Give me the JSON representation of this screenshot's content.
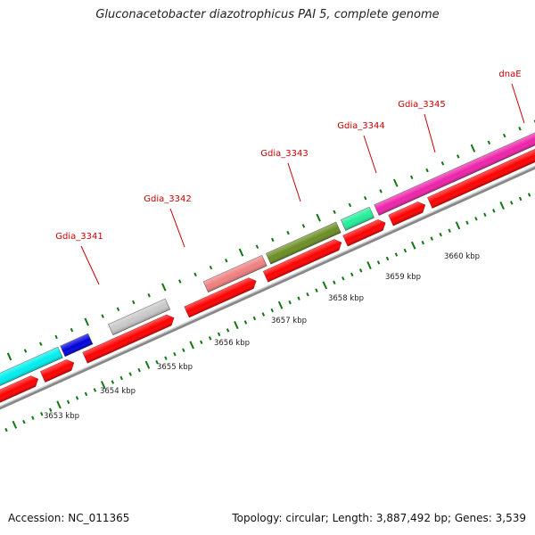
{
  "title": "Gluconacetobacter diazotrophicus PAI 5, complete genome",
  "footer": {
    "accession": "Accession: NC_011365",
    "summary": "Topology: circular; Length: 3,887,492 bp; Genes: 3,539"
  },
  "colors": {
    "backbone": "#888888",
    "cds": "#ff0000",
    "gene_label": "#cc0000",
    "tick": "#117711",
    "tick_label": "#222222"
  },
  "gene_labels": [
    {
      "text": "Gdia_3341",
      "color": "#0000dd"
    },
    {
      "text": "Gdia_3342",
      "color": "#c8c8c8"
    },
    {
      "text": "Gdia_3343",
      "color": "#f08080"
    },
    {
      "text": "Gdia_3344",
      "color": "#6b8e23"
    },
    {
      "text": "Gdia_3345",
      "color": "#22ee99"
    },
    {
      "text": "dnaE",
      "color": "#ee22aa"
    }
  ],
  "extra_features": [
    {
      "color": "#00eeee"
    }
  ],
  "scale_labels": [
    "3653 kbp",
    "3654 kbp",
    "3655 kbp",
    "3656 kbp",
    "3657 kbp",
    "3658 kbp",
    "3659 kbp",
    "3660 kbp"
  ]
}
